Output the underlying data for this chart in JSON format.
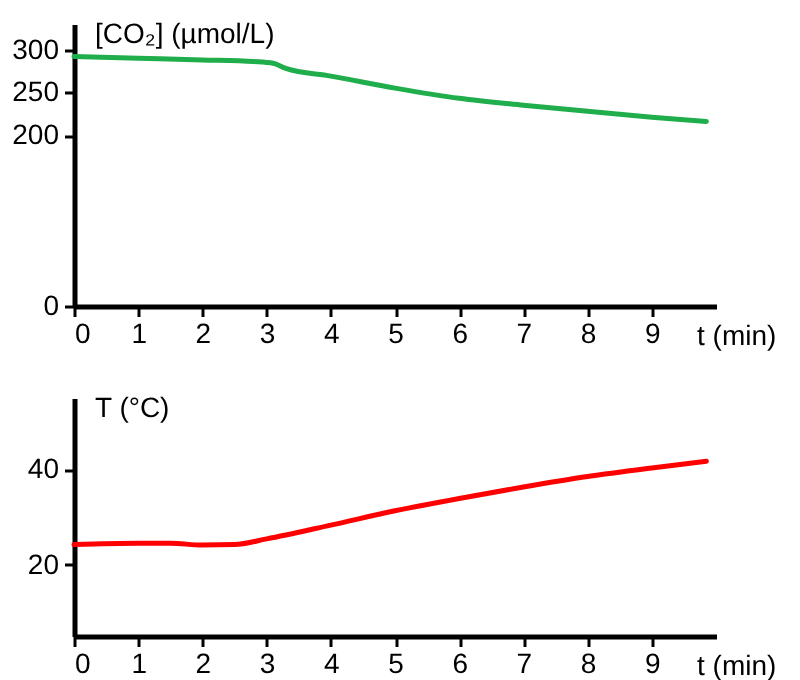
{
  "chart_data": [
    {
      "type": "line",
      "xlabel": "t (min)",
      "ylabel": "[CO₂] (µmol/L)",
      "x": [
        0,
        1,
        2,
        2.8,
        3.1,
        3.3,
        4,
        5,
        6,
        7,
        8,
        9,
        9.85
      ],
      "series": [
        {
          "color": "#1fae4b",
          "values": [
            292,
            290,
            288,
            286,
            284,
            278,
            269,
            255,
            243,
            235,
            228,
            221,
            216
          ]
        }
      ],
      "xlim": [
        0,
        10
      ],
      "xticks": [
        0,
        1,
        2,
        3,
        4,
        5,
        6,
        7,
        8,
        9
      ],
      "ylim": [
        0,
        330
      ],
      "yticks": [
        0,
        200,
        250,
        300
      ],
      "grid": false
    },
    {
      "type": "line",
      "xlabel": "t (min)",
      "ylabel": "T (°C)",
      "x": [
        0,
        1,
        1.5,
        2,
        2.5,
        3,
        4,
        5,
        6,
        7,
        8,
        9,
        9.85
      ],
      "series": [
        {
          "color": "#ff0000",
          "values": [
            24.2,
            24.5,
            24.5,
            24.1,
            24.2,
            25.4,
            28.3,
            31.3,
            33.9,
            36.3,
            38.5,
            40.3,
            41.7
          ]
        }
      ],
      "xlim": [
        0,
        10
      ],
      "xticks": [
        0,
        1,
        2,
        3,
        4,
        5,
        6,
        7,
        8,
        9
      ],
      "ylim": [
        5,
        55
      ],
      "yticks": [
        20,
        40
      ],
      "grid": false
    }
  ]
}
